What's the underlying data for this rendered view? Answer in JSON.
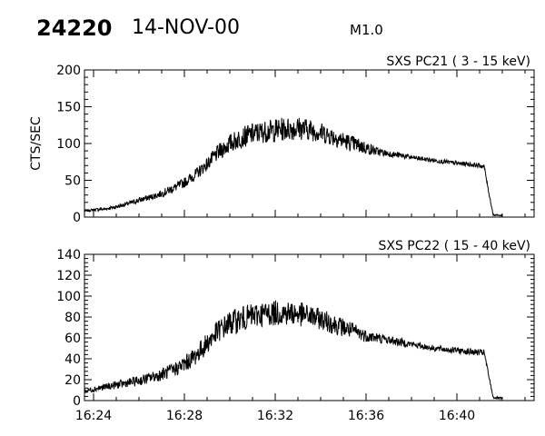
{
  "header": {
    "event_id": "24220",
    "date": "14-NOV-00",
    "flare_class": "M1.0"
  },
  "colors": {
    "trace": "#000000",
    "axes": "#000000",
    "background": "#ffffff"
  },
  "chart_data": [
    {
      "type": "line",
      "title": "SXS PC21  (  3 - 15 keV)",
      "xlabel": "",
      "ylabel": "CTS/SEC",
      "x_unit": "UT hh:mm",
      "xlim": [
        "16:23:36",
        "16:43:24"
      ],
      "ylim": [
        0,
        200
      ],
      "yticks": [
        0,
        50,
        100,
        150,
        200
      ],
      "yticklabels": [
        "0",
        "50",
        "100",
        "150",
        "200"
      ],
      "xticks": [
        "16:24",
        "16:28",
        "16:32",
        "16:36",
        "16:40"
      ],
      "xticklabels": [],
      "grid": false,
      "series": [
        {
          "x": [
            "16:23:36",
            "16:24:00",
            "16:24:30",
            "16:25:00",
            "16:25:30",
            "16:26:00",
            "16:26:30",
            "16:27:00",
            "16:27:30",
            "16:28:00",
            "16:28:30",
            "16:29:00",
            "16:29:30",
            "16:30:00",
            "16:30:30",
            "16:31:00",
            "16:31:30",
            "16:32:00",
            "16:32:30",
            "16:33:00",
            "16:33:30",
            "16:34:00",
            "16:34:30",
            "16:35:00",
            "16:35:30",
            "16:36:00",
            "16:36:30",
            "16:37:00",
            "16:37:30",
            "16:38:00",
            "16:38:30",
            "16:39:00",
            "16:39:30",
            "16:40:00",
            "16:40:30",
            "16:41:00",
            "16:41:12",
            "16:41:24",
            "16:41:36",
            "16:42:00"
          ],
          "y": [
            8,
            10,
            11,
            14,
            18,
            23,
            27,
            32,
            39,
            47,
            58,
            72,
            88,
            100,
            108,
            113,
            116,
            118,
            120,
            121,
            119,
            115,
            110,
            104,
            99,
            94,
            89,
            86,
            84,
            81,
            79,
            77,
            75,
            73,
            72,
            70,
            69,
            34,
            3,
            2
          ],
          "noise": [
            1,
            2,
            2,
            3,
            3,
            4,
            4,
            5,
            6,
            7,
            8,
            9,
            11,
            13,
            14,
            15,
            15,
            16,
            16,
            16,
            15,
            14,
            13,
            12,
            11,
            9,
            6,
            4,
            4,
            3,
            3,
            3,
            3,
            3,
            3,
            3,
            3,
            2,
            1,
            1
          ]
        }
      ]
    },
    {
      "type": "line",
      "title": "SXS PC22  ( 15 - 40 keV)",
      "xlabel": "",
      "ylabel": "",
      "x_unit": "UT hh:mm",
      "xlim": [
        "16:23:36",
        "16:43:24"
      ],
      "ylim": [
        0,
        140
      ],
      "yticks": [
        0,
        20,
        40,
        60,
        80,
        100,
        120,
        140
      ],
      "yticklabels": [
        "0",
        "20",
        "40",
        "60",
        "80",
        "100",
        "120",
        "140"
      ],
      "xticks": [
        "16:24",
        "16:28",
        "16:32",
        "16:36",
        "16:40"
      ],
      "xticklabels": [
        "16:24",
        "16:28",
        "16:32",
        "16:36",
        "16:40"
      ],
      "grid": false,
      "series": [
        {
          "x": [
            "16:23:36",
            "16:24:00",
            "16:24:30",
            "16:25:00",
            "16:25:30",
            "16:26:00",
            "16:26:30",
            "16:27:00",
            "16:27:30",
            "16:28:00",
            "16:28:30",
            "16:29:00",
            "16:29:30",
            "16:30:00",
            "16:30:30",
            "16:31:00",
            "16:31:30",
            "16:32:00",
            "16:32:30",
            "16:33:00",
            "16:33:30",
            "16:34:00",
            "16:34:30",
            "16:35:00",
            "16:35:30",
            "16:36:00",
            "16:36:30",
            "16:37:00",
            "16:37:30",
            "16:38:00",
            "16:38:30",
            "16:39:00",
            "16:39:30",
            "16:40:00",
            "16:40:30",
            "16:41:00",
            "16:41:12",
            "16:41:24",
            "16:41:36",
            "16:42:00"
          ],
          "y": [
            9,
            11,
            13,
            15,
            17,
            19,
            22,
            25,
            29,
            35,
            43,
            55,
            67,
            74,
            78,
            81,
            83,
            84,
            84,
            83,
            81,
            78,
            74,
            70,
            66,
            62,
            60,
            58,
            56,
            54,
            52,
            50,
            49,
            48,
            47,
            46,
            46,
            24,
            3,
            2
          ],
          "noise": [
            2,
            3,
            3,
            4,
            4,
            5,
            5,
            6,
            7,
            8,
            9,
            10,
            11,
            12,
            12,
            12,
            12,
            12,
            12,
            12,
            11,
            10,
            10,
            9,
            8,
            6,
            5,
            4,
            4,
            3,
            3,
            3,
            3,
            3,
            3,
            3,
            3,
            2,
            1,
            1
          ]
        }
      ]
    }
  ]
}
